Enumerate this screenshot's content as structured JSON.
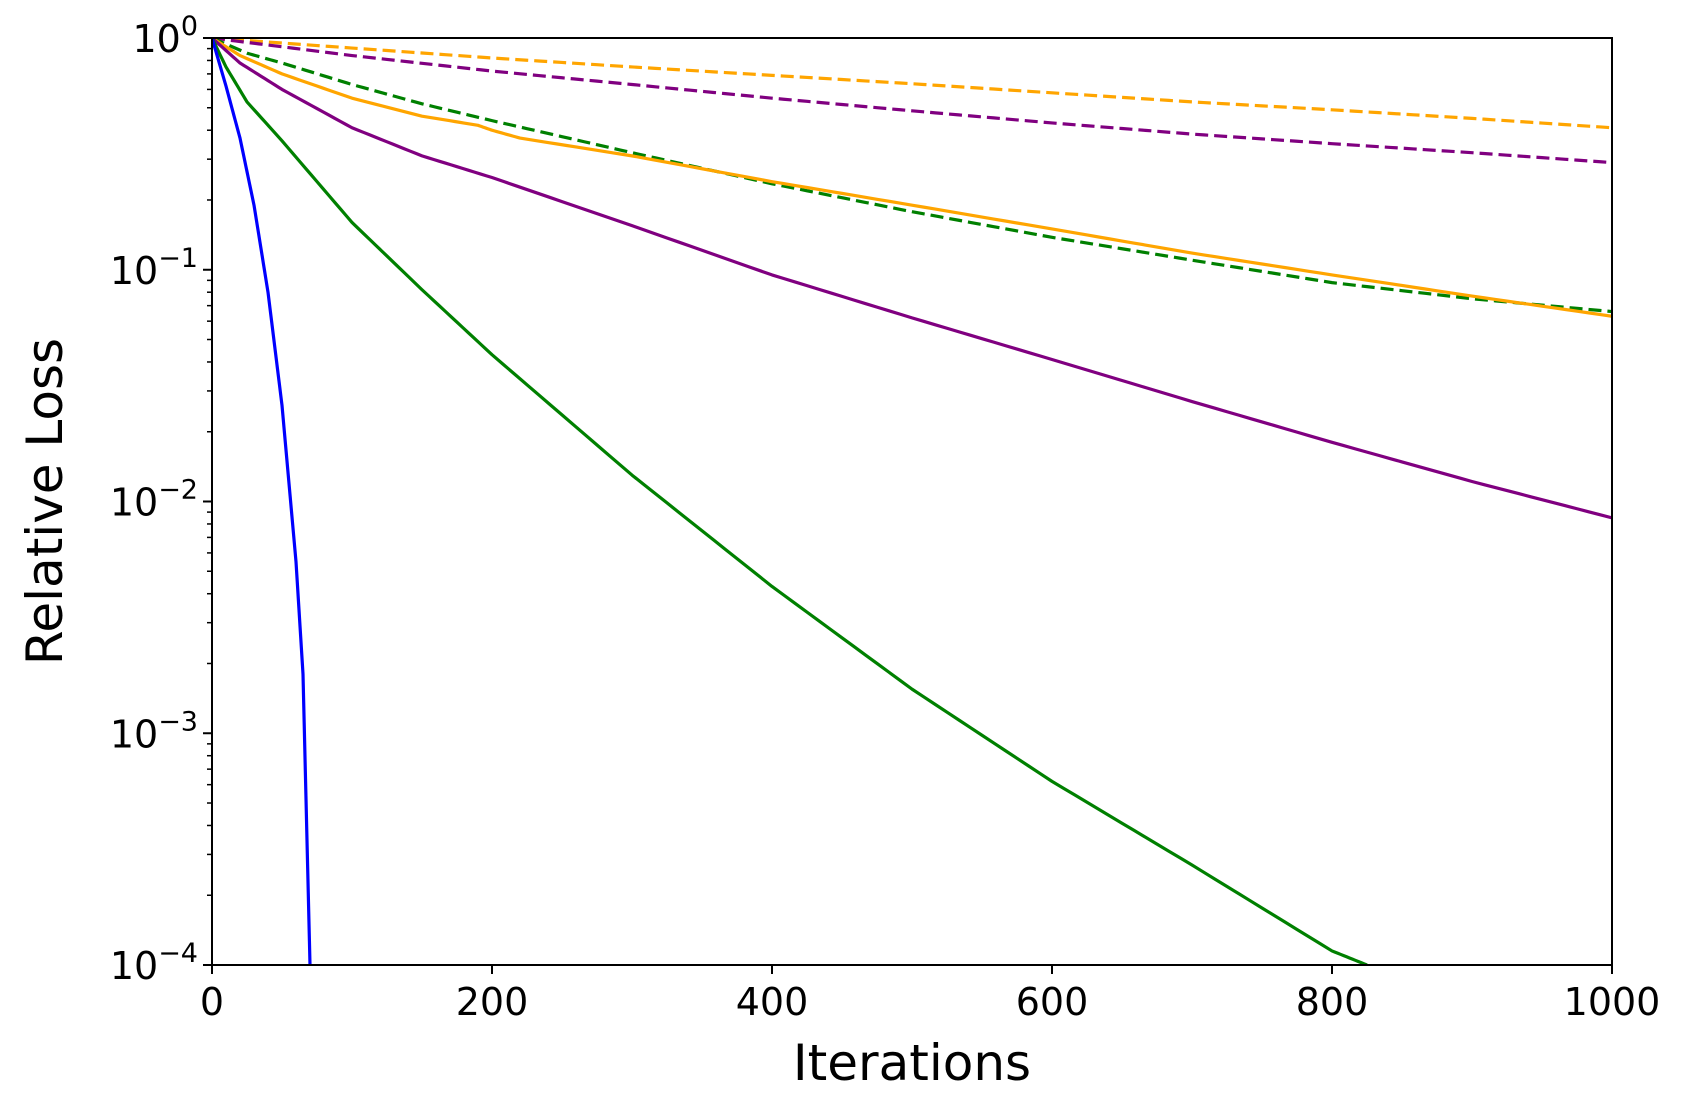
{
  "chart_data": {
    "type": "line",
    "title": "",
    "xlabel": "Iterations",
    "ylabel": "Relative Loss",
    "xlim": [
      0,
      1000
    ],
    "ylim": [
      0.0001,
      1
    ],
    "yscale": "log",
    "grid": false,
    "x_ticks": [
      {
        "value": 0,
        "label": "0"
      },
      {
        "value": 200,
        "label": "200"
      },
      {
        "value": 400,
        "label": "400"
      },
      {
        "value": 600,
        "label": "600"
      },
      {
        "value": 800,
        "label": "800"
      },
      {
        "value": 1000,
        "label": "1000"
      }
    ],
    "y_ticks": [
      {
        "value": 1,
        "base": "10",
        "exp": "0"
      },
      {
        "value": 0.1,
        "base": "10",
        "exp": "−1"
      },
      {
        "value": 0.01,
        "base": "10",
        "exp": "−2"
      },
      {
        "value": 0.001,
        "base": "10",
        "exp": "−3"
      },
      {
        "value": 0.0001,
        "base": "10",
        "exp": "−4"
      }
    ],
    "series": [
      {
        "color": "#ffa500",
        "dash": "dashed",
        "x": [
          0,
          100,
          200,
          300,
          400,
          500,
          600,
          700,
          800,
          900,
          1000
        ],
        "y": [
          1.0,
          0.905,
          0.82,
          0.75,
          0.69,
          0.635,
          0.58,
          0.53,
          0.49,
          0.45,
          0.41
        ]
      },
      {
        "color": "#800080",
        "dash": "dashed",
        "x": [
          0,
          100,
          200,
          300,
          400,
          500,
          600,
          700,
          800,
          900,
          1000
        ],
        "y": [
          1.0,
          0.84,
          0.72,
          0.63,
          0.55,
          0.485,
          0.43,
          0.385,
          0.35,
          0.32,
          0.29
        ]
      },
      {
        "color": "#008000",
        "dash": "dashed",
        "x": [
          0,
          25,
          50,
          100,
          150,
          200,
          300,
          400,
          500,
          600,
          700,
          800,
          900,
          1000
        ],
        "y": [
          1.0,
          0.86,
          0.78,
          0.63,
          0.52,
          0.44,
          0.32,
          0.235,
          0.178,
          0.138,
          0.11,
          0.088,
          0.075,
          0.066
        ]
      },
      {
        "color": "#ffa500",
        "dash": "solid",
        "x": [
          0,
          20,
          50,
          100,
          150,
          190,
          200,
          220,
          300,
          400,
          500,
          600,
          700,
          800,
          900,
          1000
        ],
        "y": [
          1.0,
          0.84,
          0.7,
          0.55,
          0.46,
          0.42,
          0.4,
          0.37,
          0.31,
          0.24,
          0.19,
          0.15,
          0.118,
          0.095,
          0.077,
          0.063
        ]
      },
      {
        "color": "#800080",
        "dash": "solid",
        "x": [
          0,
          20,
          50,
          100,
          150,
          200,
          300,
          400,
          500,
          600,
          700,
          800,
          900,
          1000
        ],
        "y": [
          1.0,
          0.78,
          0.6,
          0.41,
          0.31,
          0.25,
          0.155,
          0.095,
          0.062,
          0.041,
          0.027,
          0.018,
          0.0122,
          0.0085
        ]
      },
      {
        "color": "#008000",
        "dash": "solid",
        "x": [
          0,
          10,
          25,
          50,
          100,
          150,
          200,
          300,
          400,
          500,
          600,
          700,
          800,
          825
        ],
        "y": [
          1.0,
          0.75,
          0.53,
          0.36,
          0.16,
          0.082,
          0.043,
          0.013,
          0.0043,
          0.00155,
          0.00062,
          0.00027,
          0.000115,
          0.0001
        ]
      },
      {
        "color": "#0000ff",
        "dash": "solid",
        "x": [
          0,
          10,
          20,
          30,
          40,
          50,
          60,
          65,
          70
        ],
        "y": [
          1.0,
          0.62,
          0.37,
          0.19,
          0.08,
          0.026,
          0.0055,
          0.0018,
          0.0001
        ]
      }
    ]
  }
}
